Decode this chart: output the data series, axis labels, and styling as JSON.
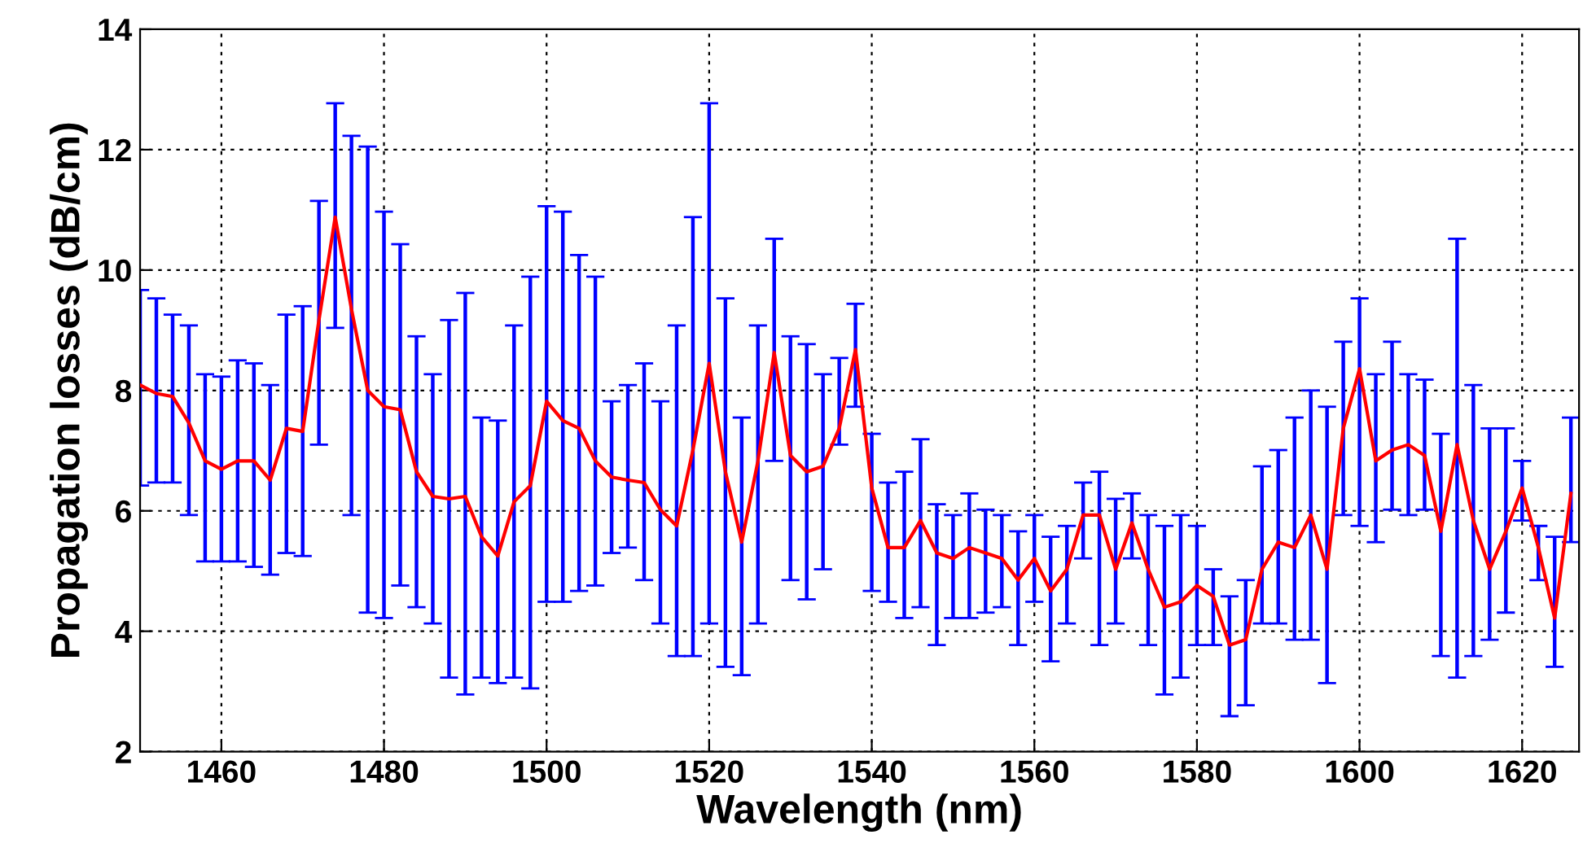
{
  "chart_data": {
    "type": "line",
    "xlabel": "Wavelength (nm)",
    "ylabel": "Propagation losses (dB/cm)",
    "x": [
      1450,
      1452,
      1454,
      1456,
      1458,
      1460,
      1462,
      1464,
      1466,
      1468,
      1470,
      1472,
      1474,
      1476,
      1478,
      1480,
      1482,
      1484,
      1486,
      1488,
      1490,
      1492,
      1494,
      1496,
      1498,
      1500,
      1502,
      1504,
      1506,
      1508,
      1510,
      1512,
      1514,
      1516,
      1518,
      1520,
      1522,
      1524,
      1526,
      1528,
      1530,
      1532,
      1534,
      1536,
      1538,
      1540,
      1542,
      1544,
      1546,
      1548,
      1550,
      1552,
      1554,
      1556,
      1558,
      1560,
      1562,
      1564,
      1566,
      1568,
      1570,
      1572,
      1574,
      1576,
      1578,
      1580,
      1582,
      1584,
      1586,
      1588,
      1590,
      1592,
      1594,
      1596,
      1598,
      1600,
      1602,
      1604,
      1606,
      1608,
      1610,
      1612,
      1614,
      1616,
      1618,
      1620,
      1622,
      1624,
      1626
    ],
    "series": [
      {
        "color": "#ff0000",
        "values": [
          8.09,
          7.95,
          7.9,
          7.46,
          6.83,
          6.69,
          6.83,
          6.83,
          6.51,
          7.37,
          7.32,
          9.17,
          10.88,
          9.35,
          8.0,
          7.73,
          7.68,
          6.65,
          6.24,
          6.2,
          6.24,
          5.57,
          5.25,
          6.15,
          6.42,
          7.82,
          7.5,
          7.37,
          6.83,
          6.56,
          6.51,
          6.47,
          6.02,
          5.75,
          7.01,
          8.45,
          6.65,
          5.48,
          6.83,
          8.63,
          6.92,
          6.65,
          6.74,
          7.37,
          8.68,
          6.38,
          5.39,
          5.39,
          5.84,
          5.3,
          5.21,
          5.39,
          5.3,
          5.21,
          4.85,
          5.21,
          4.67,
          5.03,
          5.93,
          5.93,
          5.03,
          5.8,
          5.03,
          4.4,
          4.49,
          4.76,
          4.58,
          3.77,
          3.86,
          5.03,
          5.48,
          5.39,
          5.93,
          5.03,
          7.37,
          8.36,
          6.83,
          7.01,
          7.1,
          6.92,
          5.66,
          7.1,
          5.84,
          5.03,
          5.66,
          6.38,
          5.39,
          4.22,
          6.29
        ],
        "errors": [
          [
            6.42,
            9.67
          ],
          [
            6.47,
            9.53
          ],
          [
            6.47,
            9.26
          ],
          [
            5.93,
            9.08
          ],
          [
            5.16,
            8.27
          ],
          [
            5.16,
            8.23
          ],
          [
            5.16,
            8.5
          ],
          [
            5.07,
            8.45
          ],
          [
            4.94,
            8.09
          ],
          [
            5.3,
            9.26
          ],
          [
            5.25,
            9.4
          ],
          [
            7.1,
            11.15
          ],
          [
            9.04,
            12.77
          ],
          [
            5.93,
            12.23
          ],
          [
            4.31,
            12.05
          ],
          [
            4.22,
            10.97
          ],
          [
            4.76,
            10.43
          ],
          [
            4.4,
            8.9
          ],
          [
            4.13,
            8.27
          ],
          [
            3.23,
            9.17
          ],
          [
            2.95,
            9.62
          ],
          [
            3.23,
            7.55
          ],
          [
            3.14,
            7.5
          ],
          [
            3.23,
            9.08
          ],
          [
            3.05,
            9.89
          ],
          [
            4.49,
            11.06
          ],
          [
            4.49,
            10.97
          ],
          [
            4.67,
            10.25
          ],
          [
            4.76,
            9.89
          ],
          [
            5.3,
            7.82
          ],
          [
            5.39,
            8.09
          ],
          [
            4.85,
            8.45
          ],
          [
            4.13,
            7.82
          ],
          [
            3.59,
            9.08
          ],
          [
            3.59,
            10.88
          ],
          [
            4.13,
            12.77
          ],
          [
            3.41,
            9.53
          ],
          [
            3.27,
            7.55
          ],
          [
            4.13,
            9.08
          ],
          [
            6.83,
            10.52
          ],
          [
            4.85,
            8.9
          ],
          [
            4.53,
            8.77
          ],
          [
            5.03,
            8.27
          ],
          [
            7.1,
            8.54
          ],
          [
            7.73,
            9.44
          ],
          [
            4.67,
            7.28
          ],
          [
            4.49,
            6.47
          ],
          [
            4.22,
            6.65
          ],
          [
            4.4,
            7.19
          ],
          [
            3.77,
            6.11
          ],
          [
            4.22,
            5.93
          ],
          [
            4.22,
            6.29
          ],
          [
            4.31,
            6.02
          ],
          [
            4.4,
            5.93
          ],
          [
            3.77,
            5.66
          ],
          [
            4.49,
            5.93
          ],
          [
            3.5,
            5.57
          ],
          [
            4.13,
            5.75
          ],
          [
            5.21,
            6.47
          ],
          [
            3.77,
            6.65
          ],
          [
            4.13,
            6.2
          ],
          [
            5.21,
            6.29
          ],
          [
            3.77,
            5.93
          ],
          [
            2.95,
            5.75
          ],
          [
            3.23,
            5.93
          ],
          [
            3.77,
            5.75
          ],
          [
            3.77,
            5.03
          ],
          [
            2.59,
            4.58
          ],
          [
            2.77,
            4.85
          ],
          [
            4.13,
            6.74
          ],
          [
            4.13,
            7.01
          ],
          [
            3.86,
            7.55
          ],
          [
            3.86,
            8.0
          ],
          [
            3.14,
            7.73
          ],
          [
            5.93,
            8.81
          ],
          [
            5.75,
            9.53
          ],
          [
            5.48,
            8.27
          ],
          [
            6.02,
            8.81
          ],
          [
            5.93,
            8.27
          ],
          [
            6.02,
            8.18
          ],
          [
            3.59,
            7.28
          ],
          [
            3.23,
            10.52
          ],
          [
            3.59,
            8.09
          ],
          [
            3.86,
            7.37
          ],
          [
            4.31,
            7.37
          ],
          [
            5.84,
            6.83
          ],
          [
            4.85,
            5.75
          ],
          [
            3.41,
            5.57
          ],
          [
            5.48,
            7.55
          ]
        ]
      }
    ],
    "xlim": [
      1450,
      1627
    ],
    "ylim": [
      2,
      14
    ],
    "xticks": [
      1460,
      1480,
      1500,
      1520,
      1540,
      1560,
      1580,
      1600,
      1620
    ],
    "yticks": [
      2,
      4,
      6,
      8,
      10,
      12,
      14
    ],
    "grid": true,
    "line_style": "solid"
  }
}
